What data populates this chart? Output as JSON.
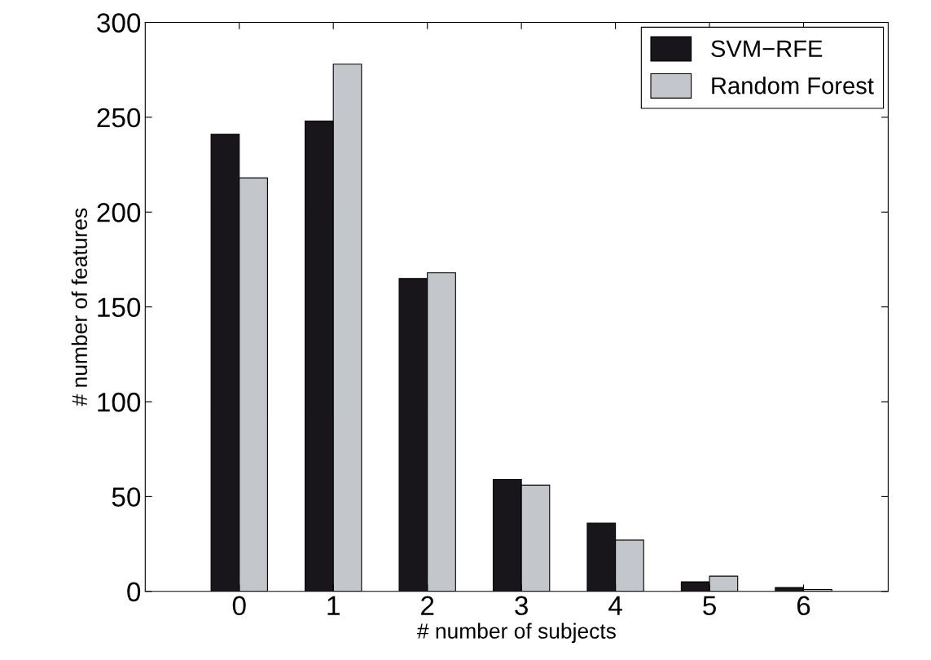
{
  "chart_data": {
    "type": "bar",
    "xlabel": "# number of subjects",
    "ylabel": "# number of features",
    "categories": [
      "0",
      "1",
      "2",
      "3",
      "4",
      "5",
      "6"
    ],
    "series": [
      {
        "name": "SVM−RFE",
        "color": "#18161a",
        "values": [
          241,
          248,
          165,
          59,
          36,
          5,
          2
        ]
      },
      {
        "name": "Random Forest",
        "color": "#c3c6cb",
        "values": [
          218,
          278,
          168,
          56,
          27,
          8,
          1
        ]
      }
    ],
    "ylim": [
      0,
      300
    ],
    "yticks": [
      0,
      50,
      100,
      150,
      200,
      250,
      300
    ],
    "grid": false,
    "legend": "top right"
  }
}
